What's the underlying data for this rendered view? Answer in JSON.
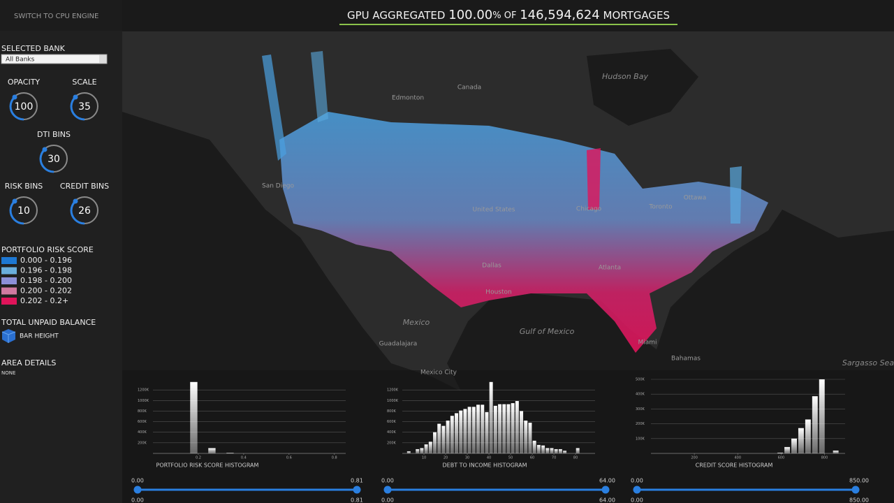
{
  "header": {
    "parts": [
      "GPU AGGREGATED",
      "100.00",
      "% OF",
      "146,594,624",
      "MORTGAGES"
    ]
  },
  "sidebar": {
    "switch": "SWITCH TO CPU ENGINE",
    "bank_label": "SELECTED BANK",
    "bank_value": "All Banks",
    "knobs": [
      {
        "label": "OPACITY",
        "value": 100
      },
      {
        "label": "SCALE",
        "value": 35
      },
      {
        "label": "DTI BINS",
        "value": 30
      },
      {
        "label": "RISK BINS",
        "value": 10
      },
      {
        "label": "CREDIT BINS",
        "value": 26
      }
    ],
    "legend": {
      "title": "PORTFOLIO RISK SCORE",
      "items": [
        {
          "label": "0.000 - 0.196",
          "color": "#1e78d2"
        },
        {
          "label": "0.196 - 0.198",
          "color": "#6aaedc"
        },
        {
          "label": "0.198 - 0.200",
          "color": "#8c90d8"
        },
        {
          "label": "0.200 - 0.202",
          "color": "#d07aa0"
        },
        {
          "label": "0.202 - 0.2+",
          "color": "#e0145a"
        }
      ]
    },
    "balance_title": "TOTAL UNPAID BALANCE",
    "balance_item": "BAR HEIGHT",
    "area_title": "AREA DETAILS",
    "area_value": "NONE"
  },
  "map": {
    "labels": [
      "Canada",
      "Hudson Bay",
      "United States",
      "Mexico",
      "Gulf of Mexico",
      "Bahamas",
      "Sargasso Sea",
      "Edmonton",
      "Chicago",
      "Toronto",
      "Ottawa",
      "Dallas",
      "Houston",
      "Atlanta",
      "Miami",
      "Guadalajara",
      "San Diego",
      "Mexico City"
    ]
  },
  "chart_data": [
    {
      "type": "histogram",
      "title": "PORTFOLIO RISK SCORE HISTOGRAM",
      "color": "#ffffff",
      "bins": [
        0.16,
        0.2,
        0.24,
        0.28,
        0.32,
        0.36
      ],
      "values": [
        1350000,
        0,
        100000,
        0,
        10000
      ],
      "xlim": [
        0,
        0.85
      ],
      "ylim": [
        0,
        1400000
      ],
      "xticks": [
        0.2,
        0.4,
        0.6,
        0.8
      ],
      "yticks": [
        {
          "value": 200000,
          "label": "200K"
        },
        {
          "value": 400000,
          "label": "400K"
        },
        {
          "value": 600000,
          "label": "600K"
        },
        {
          "value": 800000,
          "label": "800K"
        },
        {
          "value": 1000000,
          "label": "1000K"
        },
        {
          "value": 1200000,
          "label": "1200K"
        }
      ],
      "grid": true
    },
    {
      "type": "histogram",
      "title": "DEBT TO INCOME HISTOGRAM",
      "color": "#ffffff",
      "bins": [
        2,
        4,
        6,
        8,
        10,
        12,
        14,
        16,
        18,
        20,
        22,
        24,
        26,
        28,
        30,
        32,
        34,
        36,
        38,
        40,
        42,
        44,
        46,
        48,
        50,
        52,
        54,
        56,
        58,
        60,
        62,
        64,
        66,
        68,
        70,
        72,
        74,
        76,
        78,
        80,
        82,
        84
      ],
      "values": [
        40000,
        0,
        80000,
        100000,
        170000,
        220000,
        400000,
        560000,
        520000,
        620000,
        710000,
        760000,
        810000,
        840000,
        880000,
        880000,
        920000,
        920000,
        780000,
        1350000,
        900000,
        930000,
        930000,
        930000,
        950000,
        990000,
        800000,
        620000,
        580000,
        240000,
        160000,
        150000,
        100000,
        100000,
        80000,
        80000,
        50000,
        0,
        0,
        100000,
        0
      ],
      "xlim": [
        0,
        89
      ],
      "ylim": [
        0,
        1400000
      ],
      "xticks": [
        10,
        20,
        30,
        40,
        50,
        60,
        70,
        80
      ],
      "yticks": [
        {
          "value": 200000,
          "label": "200K"
        },
        {
          "value": 400000,
          "label": "400K"
        },
        {
          "value": 600000,
          "label": "600K"
        },
        {
          "value": 800000,
          "label": "800K"
        },
        {
          "value": 1000000,
          "label": "1000K"
        },
        {
          "value": 1200000,
          "label": "1200K"
        }
      ],
      "grid": true
    },
    {
      "type": "histogram",
      "title": "CREDIT SCORE HISTOGRAM",
      "color": "#ffffff",
      "bins": [
        580,
        612,
        644,
        676,
        708,
        740,
        772,
        804,
        836,
        868
      ],
      "values": [
        5000,
        43000,
        100000,
        171000,
        229000,
        386000,
        500000,
        0,
        19000
      ],
      "xlim": [
        0,
        895
      ],
      "ylim": [
        0,
        500000
      ],
      "xticks": [
        200,
        400,
        600,
        800
      ],
      "yticks": [
        {
          "value": 100000,
          "label": "100K"
        },
        {
          "value": 200000,
          "label": "200K"
        },
        {
          "value": 300000,
          "label": "300K"
        },
        {
          "value": 400000,
          "label": "400K"
        },
        {
          "value": 500000,
          "label": "500K"
        }
      ],
      "grid": true
    }
  ],
  "sliders": [
    {
      "min": "0.00",
      "max": "0.81",
      "low": "0.00",
      "high": "0.81"
    },
    {
      "min": "0.00",
      "max": "64.00",
      "low": "0.00",
      "high": "64.00"
    },
    {
      "min": "0.00",
      "max": "850.00",
      "low": "0.00",
      "high": "850.00"
    }
  ]
}
